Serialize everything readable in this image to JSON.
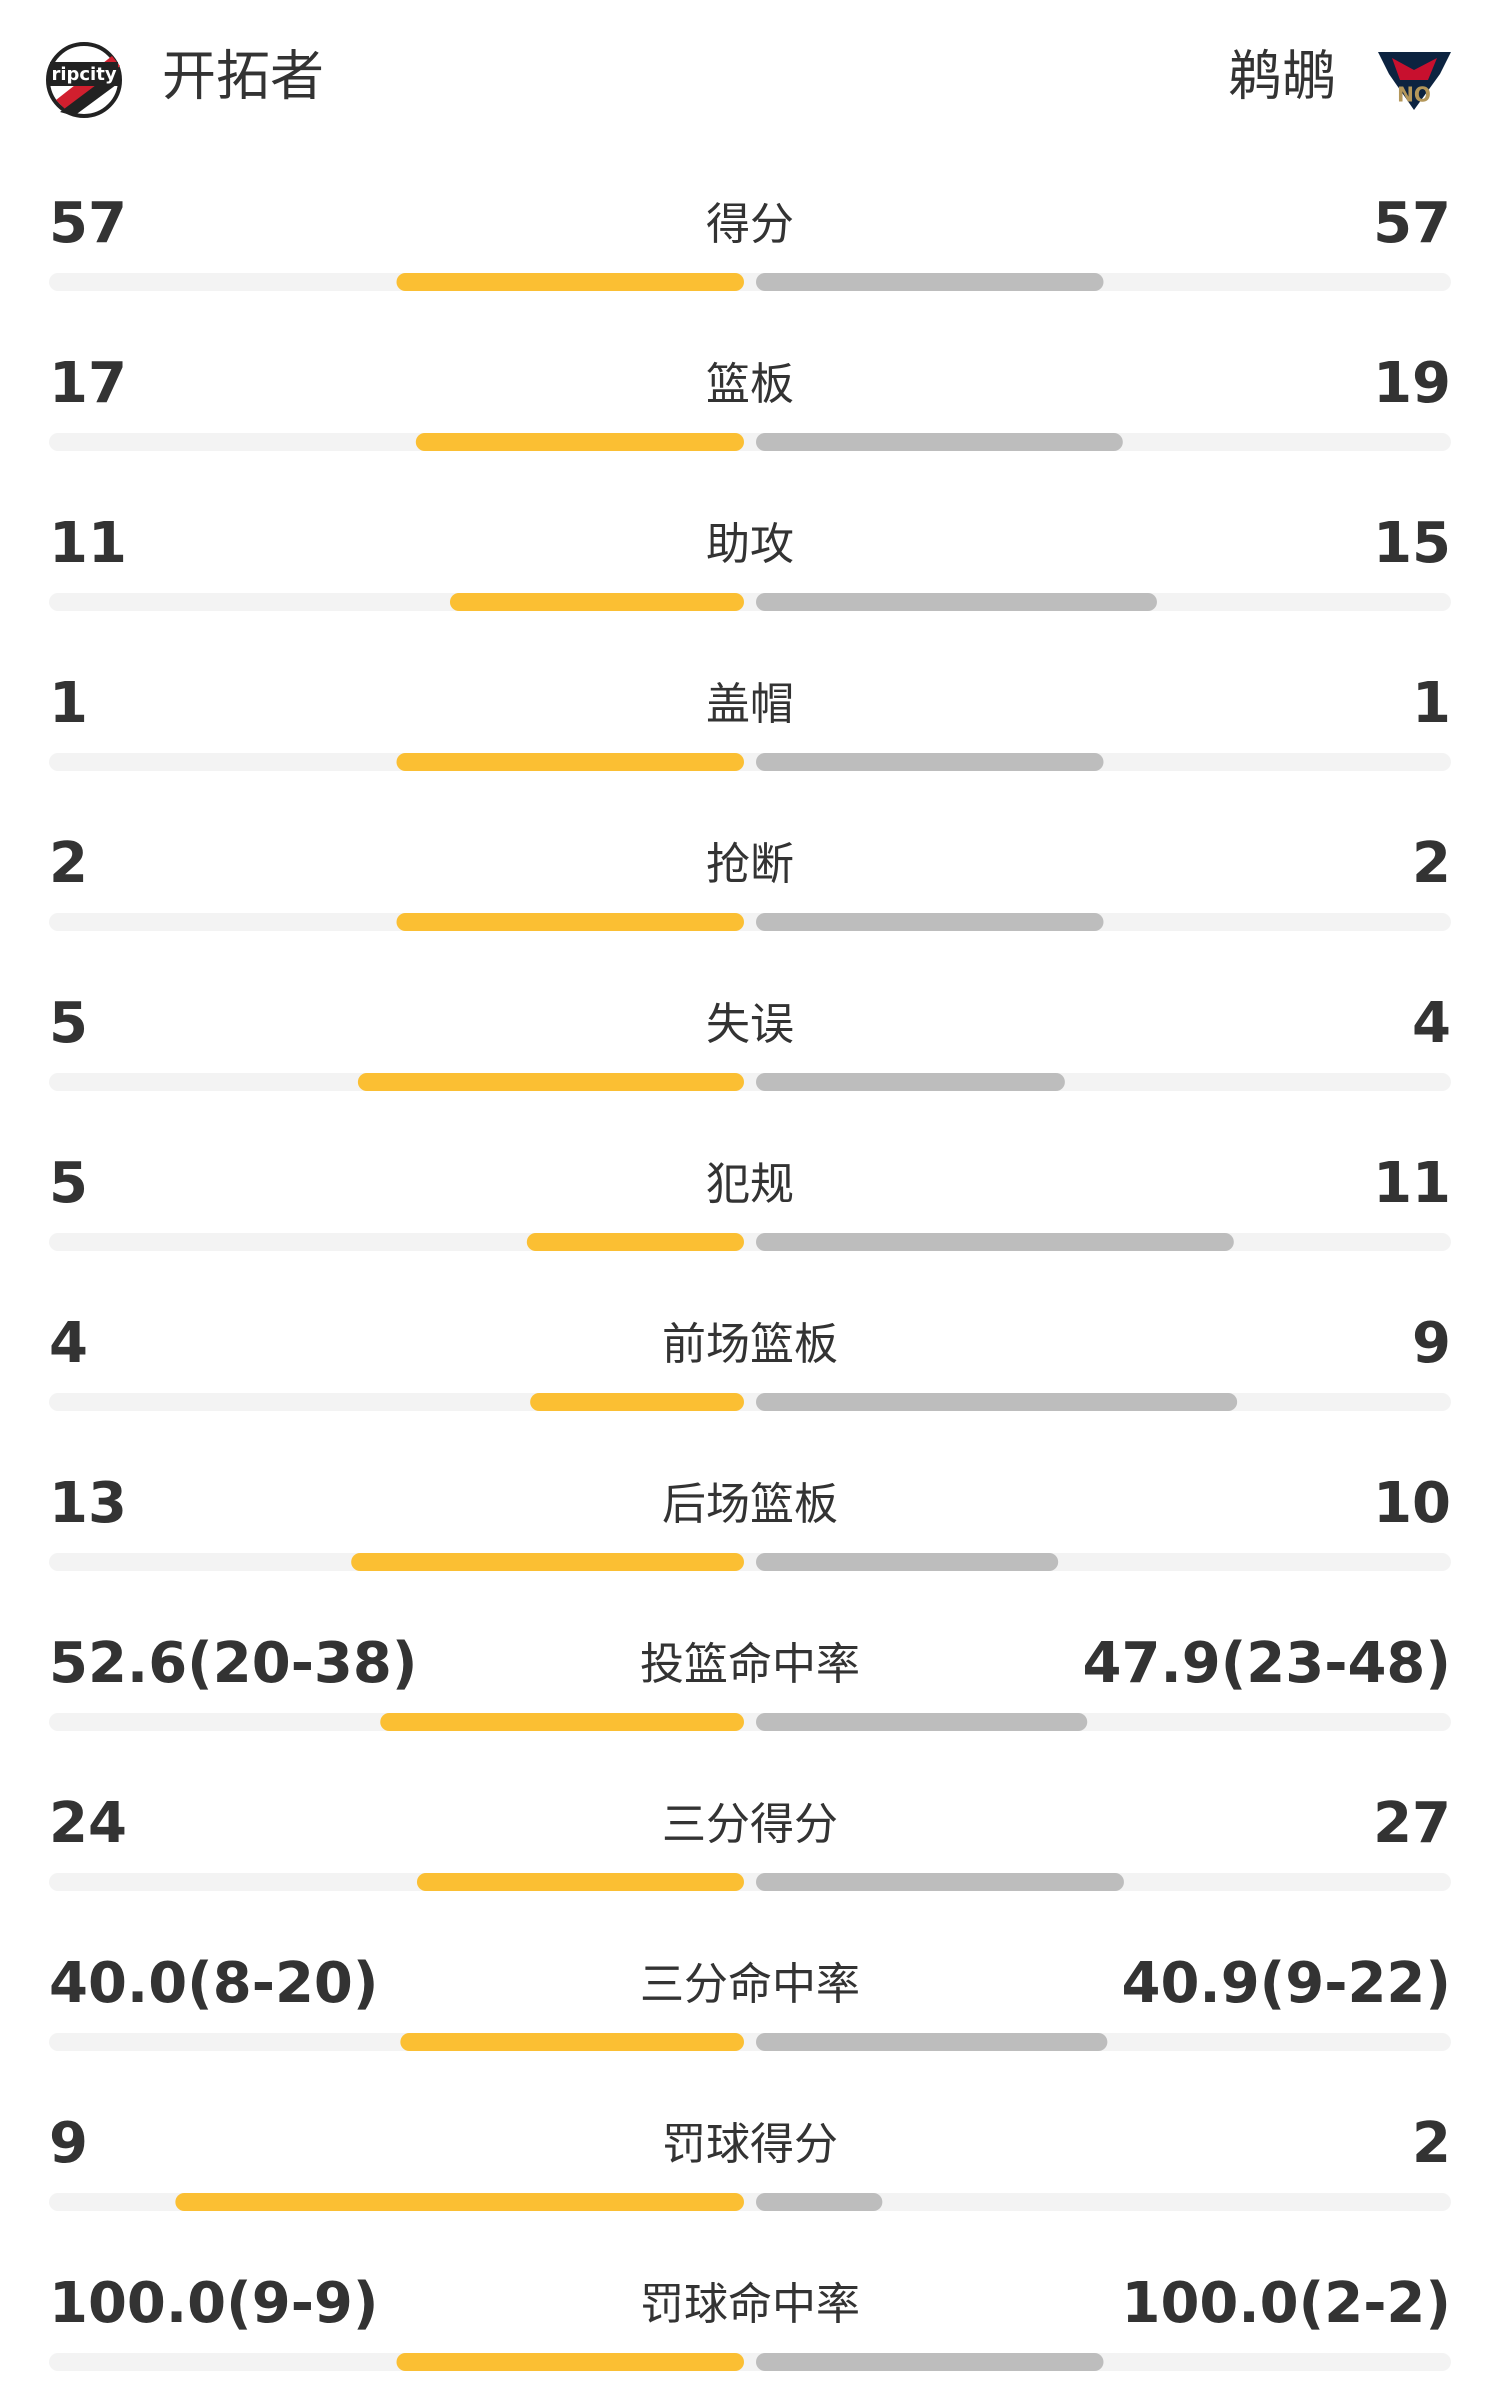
{
  "header": {
    "home": {
      "name": "开拓者",
      "logo_text": "ripcity"
    },
    "away": {
      "name": "鹈鹕",
      "logo_text": "NO"
    }
  },
  "rows": [
    {
      "label": "得分",
      "home": 57,
      "away": 57
    },
    {
      "label": "篮板",
      "home": 17,
      "away": 19
    },
    {
      "label": "助攻",
      "home": 11,
      "away": 15
    },
    {
      "label": "盖帽",
      "home": 1,
      "away": 1
    },
    {
      "label": "抢断",
      "home": 2,
      "away": 2
    },
    {
      "label": "失误",
      "home": 5,
      "away": 4
    },
    {
      "label": "犯规",
      "home": 5,
      "away": 11
    },
    {
      "label": "前场篮板",
      "home": 4,
      "away": 9
    },
    {
      "label": "后场篮板",
      "home": 13,
      "away": 10
    },
    {
      "label": "投篮命中率",
      "home": {
        "value": 52.6,
        "label": "52.6(20-38)"
      },
      "away": {
        "value": 47.9,
        "label": "47.9(23-48)"
      }
    },
    {
      "label": "三分得分",
      "home": 24,
      "away": 27
    },
    {
      "label": "三分命中率",
      "home": {
        "value": 40.0,
        "label": "40.0(8-20)"
      },
      "away": {
        "value": 40.9,
        "label": "40.9(9-22)"
      }
    },
    {
      "label": "罚球得分",
      "home": 9,
      "away": 2
    },
    {
      "label": "罚球命中率",
      "home": {
        "value": 100.0,
        "label": "100.0(9-9)"
      },
      "away": {
        "value": 100.0,
        "label": "100.0(2-2)"
      }
    }
  ]
}
